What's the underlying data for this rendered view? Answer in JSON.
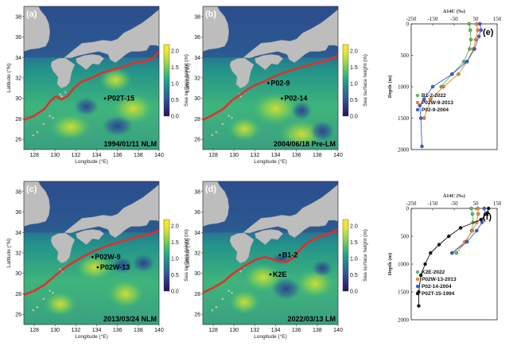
{
  "colors": {
    "kuroshio": "#e0302a",
    "land": "#bdbdbd",
    "colormap": [
      "#2c0f5f",
      "#30307f",
      "#2e5a94",
      "#257f8f",
      "#20a585",
      "#4cc06a",
      "#9cd64d",
      "#e6e42e",
      "#fde725"
    ]
  },
  "maps": [
    {
      "letter": "(a)",
      "date_label": "1994/01/11 NLM",
      "stations": [
        {
          "name": "P02T-15",
          "lon": 134.8,
          "lat": 30.0
        }
      ]
    },
    {
      "letter": "(b)",
      "date_label": "2004/06/18 Pre-LM",
      "stations": [
        {
          "name": "P02-9",
          "lon": 133.3,
          "lat": 31.5
        },
        {
          "name": "P02-14",
          "lon": 134.6,
          "lat": 30.0
        }
      ]
    },
    {
      "letter": "(c)",
      "date_label": "2013/03/24 NLM",
      "stations": [
        {
          "name": "P02W-9",
          "lon": 133.6,
          "lat": 31.6
        },
        {
          "name": "P02W-13",
          "lon": 134.1,
          "lat": 30.6
        }
      ]
    },
    {
      "letter": "(d)",
      "date_label": "2022/03/13 LM",
      "stations": [
        {
          "name": "B1-2",
          "lon": 134.4,
          "lat": 31.8
        },
        {
          "name": "K2E",
          "lon": 133.5,
          "lat": 29.9
        }
      ]
    }
  ],
  "map_axes": {
    "xlabel": "Longitude (°E)",
    "ylabel": "Latitude (°N)",
    "xticks": [
      "128",
      "130",
      "132",
      "134",
      "136",
      "138",
      "140"
    ],
    "yticks": [
      "26",
      "28",
      "30",
      "32",
      "34",
      "36",
      "38"
    ],
    "colorbar_label": "Sea surface height (m)",
    "colorbar_ticks": [
      "0.0",
      "0.5",
      "1.0",
      "1.5",
      "2.0"
    ]
  },
  "chart_data": [
    {
      "type": "line",
      "panel": "(e)",
      "xlabel": "Δ14C (‰)",
      "ylabel": "Depth (m)",
      "xlim": [
        -250,
        150
      ],
      "ylim": [
        2000,
        0
      ],
      "xticks": [
        "-250",
        "-150",
        "-50",
        "50",
        "150"
      ],
      "yticks": [
        "0",
        "500",
        "1000",
        "1500",
        "2000"
      ],
      "series": [
        {
          "name": "B1-2-2022",
          "color": "#5cb85c",
          "x": [
            20,
            25,
            28,
            22,
            -5,
            -60,
            -110
          ],
          "y": [
            0,
            100,
            250,
            400,
            600,
            800,
            1000
          ]
        },
        {
          "name": "P02W-9-2013",
          "color": "#f07f2a",
          "x": [
            55,
            60,
            50,
            40,
            10,
            -30,
            -100,
            -160,
            -190
          ],
          "y": [
            0,
            100,
            250,
            400,
            600,
            800,
            1000,
            1200,
            1500
          ]
        },
        {
          "name": "P02-9-2004",
          "color": "#3a5bd8",
          "x": [
            70,
            75,
            65,
            45,
            10,
            -60,
            -150,
            -190,
            -210,
            -205,
            -200
          ],
          "y": [
            0,
            100,
            200,
            400,
            600,
            800,
            1000,
            1200,
            1300,
            1500,
            1950
          ]
        }
      ]
    },
    {
      "type": "line",
      "panel": "(f)",
      "xlabel": "Δ14C (‰)",
      "ylabel": "Depth (m)",
      "xlim": [
        -250,
        150
      ],
      "ylim": [
        2000,
        0
      ],
      "xticks": [
        "-250",
        "-150",
        "-50",
        "50",
        "150"
      ],
      "yticks": [
        "0",
        "500",
        "1000",
        "1500",
        "2000"
      ],
      "series": [
        {
          "name": "K2E-2022",
          "color": "#5cb85c",
          "x": [
            30,
            35,
            38,
            32,
            5,
            -40
          ],
          "y": [
            0,
            100,
            250,
            400,
            600,
            800
          ]
        },
        {
          "name": "P02W-13-2013",
          "color": "#f07f2a",
          "x": [
            60,
            62,
            55,
            35,
            0,
            -60
          ],
          "y": [
            0,
            100,
            250,
            400,
            600,
            800
          ]
        },
        {
          "name": "P02-14-2004",
          "color": "#3a5bd8",
          "x": [
            90,
            95,
            80,
            55,
            10,
            -60
          ],
          "y": [
            0,
            100,
            250,
            400,
            600,
            800
          ]
        },
        {
          "name": "P02T-15-1994",
          "color": "#111111",
          "x": [
            110,
            105,
            75,
            -20,
            -75,
            -120,
            -160,
            -185,
            -205,
            -215,
            -215
          ],
          "y": [
            0,
            80,
            200,
            350,
            500,
            650,
            800,
            1000,
            1200,
            1500,
            1750
          ]
        }
      ]
    }
  ]
}
